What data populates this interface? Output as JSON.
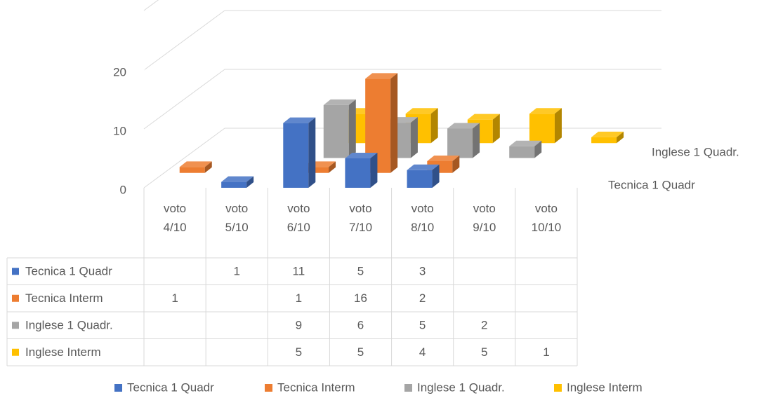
{
  "chart_data": {
    "type": "bar",
    "categories": [
      "voto 4/10",
      "voto 5/10",
      "voto 6/10",
      "voto 7/10",
      "voto 8/10",
      "voto 9/10",
      "voto 10/10"
    ],
    "series": [
      {
        "name": "Tecnica 1 Quadr",
        "color": "#4472c4",
        "values": [
          null,
          1,
          11,
          5,
          3,
          null,
          null
        ]
      },
      {
        "name": "Tecnica Interm",
        "color": "#ed7d31",
        "values": [
          1,
          null,
          1,
          16,
          2,
          null,
          null
        ]
      },
      {
        "name": "Inglese 1 Quadr.",
        "color": "#a5a5a5",
        "values": [
          null,
          null,
          9,
          6,
          5,
          2,
          null
        ]
      },
      {
        "name": "Inglese Interm",
        "color": "#ffc000",
        "values": [
          null,
          null,
          5,
          5,
          4,
          5,
          1
        ]
      }
    ],
    "ylim": [
      0,
      20
    ],
    "yticks": [
      0,
      10,
      20
    ],
    "grid": true,
    "legend": "bottom"
  }
}
